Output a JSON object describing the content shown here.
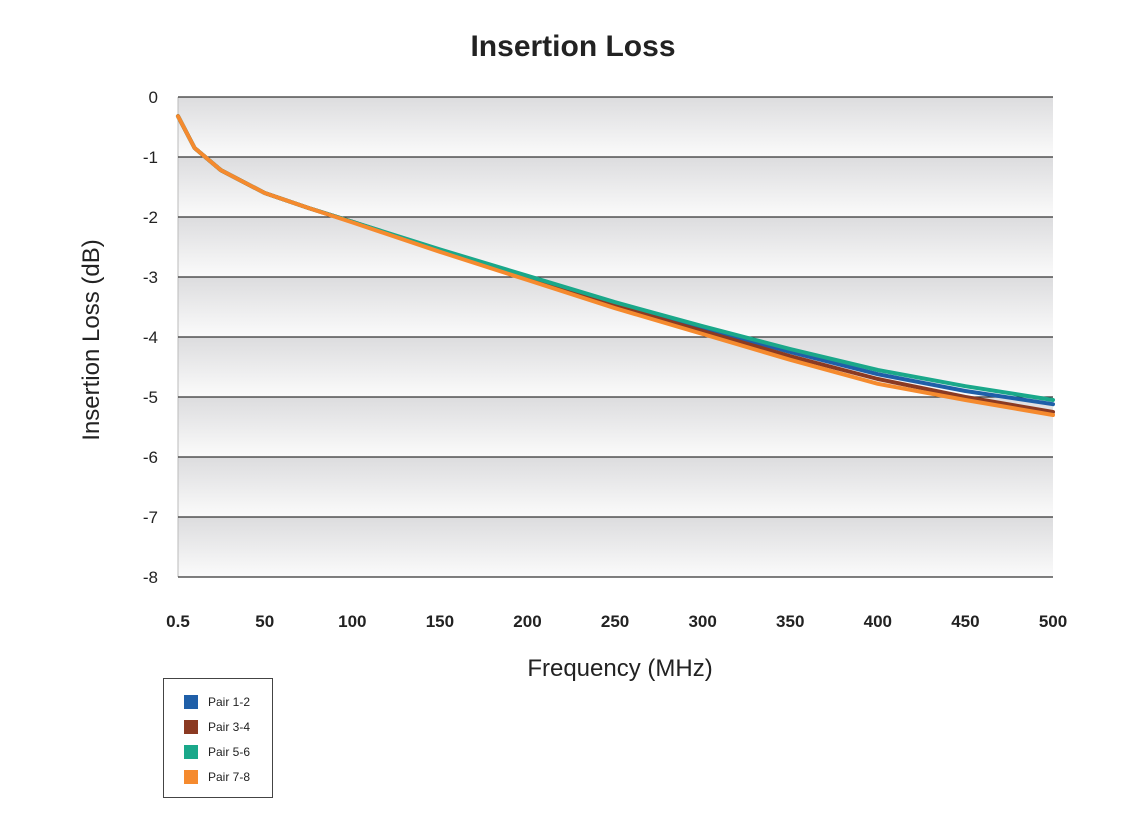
{
  "chart_data": {
    "type": "line",
    "title": "Insertion Loss",
    "xlabel": "Frequency (MHz)",
    "ylabel": "Insertion Loss (dB)",
    "xlim": [
      0.5,
      500
    ],
    "ylim": [
      -8,
      0
    ],
    "x_ticks": [
      "0.5",
      "50",
      "100",
      "150",
      "200",
      "250",
      "300",
      "350",
      "400",
      "450",
      "500"
    ],
    "y_ticks": [
      "0",
      "-1",
      "-2",
      "-3",
      "-4",
      "-5",
      "-6",
      "-7",
      "-8"
    ],
    "grid": true,
    "legend_position": "bottom-left",
    "x": [
      0.5,
      10,
      25,
      50,
      75,
      100,
      150,
      200,
      250,
      300,
      350,
      400,
      450,
      500
    ],
    "series": [
      {
        "name": "Pair 1-2",
        "color": "#1f5fa8",
        "values": [
          -0.32,
          -0.85,
          -1.22,
          -1.6,
          -1.85,
          -2.08,
          -2.55,
          -3.0,
          -3.45,
          -3.85,
          -4.25,
          -4.62,
          -4.9,
          -5.12
        ]
      },
      {
        "name": "Pair 3-4",
        "color": "#8b3a22",
        "values": [
          -0.32,
          -0.85,
          -1.22,
          -1.6,
          -1.85,
          -2.08,
          -2.57,
          -3.03,
          -3.48,
          -3.9,
          -4.32,
          -4.7,
          -5.0,
          -5.25
        ]
      },
      {
        "name": "Pair 5-6",
        "color": "#1aa88a",
        "values": [
          -0.32,
          -0.85,
          -1.22,
          -1.6,
          -1.85,
          -2.08,
          -2.54,
          -2.98,
          -3.42,
          -3.82,
          -4.2,
          -4.55,
          -4.82,
          -5.05
        ]
      },
      {
        "name": "Pair 7-8",
        "color": "#f58a2e",
        "values": [
          -0.32,
          -0.85,
          -1.22,
          -1.6,
          -1.85,
          -2.09,
          -2.58,
          -3.05,
          -3.52,
          -3.95,
          -4.38,
          -4.78,
          -5.05,
          -5.3
        ]
      }
    ]
  }
}
